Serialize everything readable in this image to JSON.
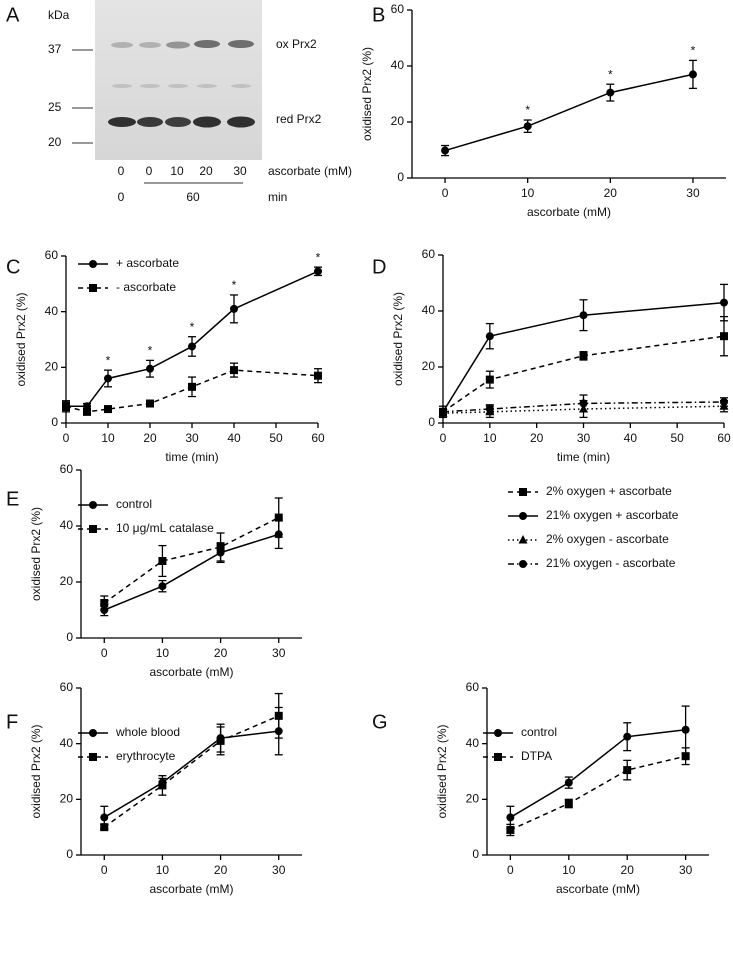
{
  "blot": {
    "panel": "A",
    "unit": "kDa",
    "markers": [
      "37",
      "25",
      "20"
    ],
    "bands": [
      "ox Prx2",
      "red Prx2"
    ],
    "ascorbate": [
      "0",
      "0",
      "10",
      "20",
      "30"
    ],
    "ascorbate_label": "ascorbate (mM)",
    "time": [
      "0",
      "60"
    ],
    "time_label": "min"
  },
  "chart_data": [
    {
      "type": "line",
      "panel": "B",
      "x_label": "ascorbate (mM)",
      "y_label": "oxidised Prx2 (%)",
      "x": [
        0,
        10,
        20,
        30
      ],
      "xlim": [
        -4,
        34
      ],
      "xticks": [
        0,
        10,
        20,
        30
      ],
      "ylim": [
        0,
        60
      ],
      "yticks": [
        0,
        20,
        40,
        60
      ],
      "series": [
        {
          "color": "#000000",
          "marker": "circle",
          "dash": "solid",
          "values": [
            9.8,
            18.5,
            30.5,
            37
          ],
          "errors": [
            1.8,
            2.2,
            3,
            5
          ],
          "significance": [
            null,
            "*",
            "*",
            "*"
          ]
        }
      ]
    },
    {
      "type": "line",
      "panel": "C",
      "x_label": "time (min)",
      "y_label": "oxidised Prx2 (%)",
      "legend": "upper left",
      "x": [
        0,
        5,
        10,
        20,
        30,
        40,
        60
      ],
      "xlim": [
        0,
        60
      ],
      "xticks": [
        0,
        10,
        20,
        30,
        40,
        50,
        60
      ],
      "ylim": [
        0,
        60
      ],
      "yticks": [
        0,
        20,
        40,
        60
      ],
      "series": [
        {
          "name": "+ ascorbate",
          "color": "#000000",
          "marker": "circle",
          "dash": "solid",
          "values": [
            6,
            6,
            16,
            19.5,
            27.5,
            41,
            54.5
          ],
          "errors": [
            2,
            1,
            3,
            3,
            3.5,
            5,
            1.5
          ],
          "significance": [
            null,
            null,
            "*",
            "*",
            "*",
            "*",
            "*"
          ]
        },
        {
          "name": "- ascorbate",
          "color": "#000000",
          "marker": "square",
          "dash": "dashed",
          "values": [
            6,
            4,
            5,
            7,
            13,
            19,
            17
          ],
          "errors": [
            1.5,
            1,
            1,
            0.8,
            3.5,
            2.5,
            2.5
          ]
        }
      ]
    },
    {
      "type": "line",
      "panel": "D",
      "x_label": "time (min)",
      "y_label": "oxidised Prx2 (%)",
      "legend": "below",
      "x": [
        0,
        10,
        30,
        60
      ],
      "xlim": [
        0,
        60
      ],
      "xticks": [
        0,
        10,
        20,
        30,
        40,
        50,
        60
      ],
      "ylim": [
        0,
        60
      ],
      "yticks": [
        0,
        20,
        40,
        60
      ],
      "series": [
        {
          "name": "2% oxygen + ascorbate",
          "color": "#000000",
          "marker": "square",
          "dash": "dashed",
          "values": [
            4,
            15.5,
            24,
            31
          ],
          "errors": [
            1,
            3,
            1.5,
            7
          ]
        },
        {
          "name": "21% oxygen + ascorbate",
          "color": "#000000",
          "marker": "circle",
          "dash": "solid",
          "values": [
            4,
            31,
            38.5,
            43
          ],
          "errors": [
            2,
            4.5,
            5.5,
            6.5
          ]
        },
        {
          "name": "2% oxygen - ascorbate",
          "color": "#000000",
          "marker": "triangle",
          "dash": "dotted",
          "values": [
            3.5,
            4,
            5,
            6
          ],
          "errors": [
            1,
            2,
            3,
            2
          ]
        },
        {
          "name": "21% oxygen - ascorbate",
          "color": "#000000",
          "marker": "circle",
          "dash": "dashdot",
          "values": [
            4,
            5,
            7,
            7.5
          ],
          "errors": [
            1,
            1.5,
            3,
            1.5
          ]
        }
      ]
    },
    {
      "type": "line",
      "panel": "E",
      "x_label": "ascorbate (mM)",
      "y_label": "oxidised Prx2 (%)",
      "legend": "upper left",
      "x": [
        0,
        10,
        20,
        30
      ],
      "xlim": [
        -4,
        34
      ],
      "xticks": [
        0,
        10,
        20,
        30
      ],
      "ylim": [
        0,
        60
      ],
      "yticks": [
        0,
        20,
        40,
        60
      ],
      "series": [
        {
          "name": "control",
          "color": "#000000",
          "marker": "circle",
          "dash": "solid",
          "values": [
            10,
            18.5,
            30.5,
            37
          ],
          "errors": [
            2,
            2,
            3.5,
            5
          ]
        },
        {
          "name": "10 μg/mL catalase",
          "color": "#000000",
          "marker": "square",
          "dash": "dashed",
          "values": [
            12.5,
            27.5,
            32.5,
            43
          ],
          "errors": [
            2.5,
            5.5,
            5,
            7
          ]
        }
      ]
    },
    {
      "type": "line",
      "panel": "F",
      "x_label": "ascorbate (mM)",
      "y_label": "oxidised Prx2 (%)",
      "legend": "upper left",
      "x": [
        0,
        10,
        20,
        30
      ],
      "xlim": [
        -4,
        34
      ],
      "xticks": [
        0,
        10,
        20,
        30
      ],
      "ylim": [
        0,
        60
      ],
      "yticks": [
        0,
        20,
        40,
        60
      ],
      "series": [
        {
          "name": "whole blood",
          "color": "#000000",
          "marker": "circle",
          "dash": "solid",
          "values": [
            13.5,
            26,
            42,
            44.5
          ],
          "errors": [
            4,
            1.5,
            5,
            8.5
          ]
        },
        {
          "name": "erythrocyte",
          "color": "#000000",
          "marker": "square",
          "dash": "dashed",
          "values": [
            10,
            25,
            41,
            50
          ],
          "errors": [
            1,
            3.5,
            5,
            8
          ]
        }
      ]
    },
    {
      "type": "line",
      "panel": "G",
      "x_label": "ascorbate (mM)",
      "y_label": "oxidised Prx2 (%)",
      "legend": "upper left",
      "x": [
        0,
        10,
        20,
        30
      ],
      "xlim": [
        -4,
        34
      ],
      "xticks": [
        0,
        10,
        20,
        30
      ],
      "ylim": [
        0,
        60
      ],
      "yticks": [
        0,
        20,
        40,
        60
      ],
      "series": [
        {
          "name": "control",
          "color": "#000000",
          "marker": "circle",
          "dash": "solid",
          "values": [
            13.5,
            26,
            42.5,
            45
          ],
          "errors": [
            4,
            2,
            5,
            8.5
          ]
        },
        {
          "name": "DTPA",
          "color": "#000000",
          "marker": "square",
          "dash": "dashed",
          "values": [
            9,
            18.5,
            30.5,
            35.5
          ],
          "errors": [
            2,
            1.5,
            3.5,
            3
          ]
        }
      ]
    }
  ]
}
